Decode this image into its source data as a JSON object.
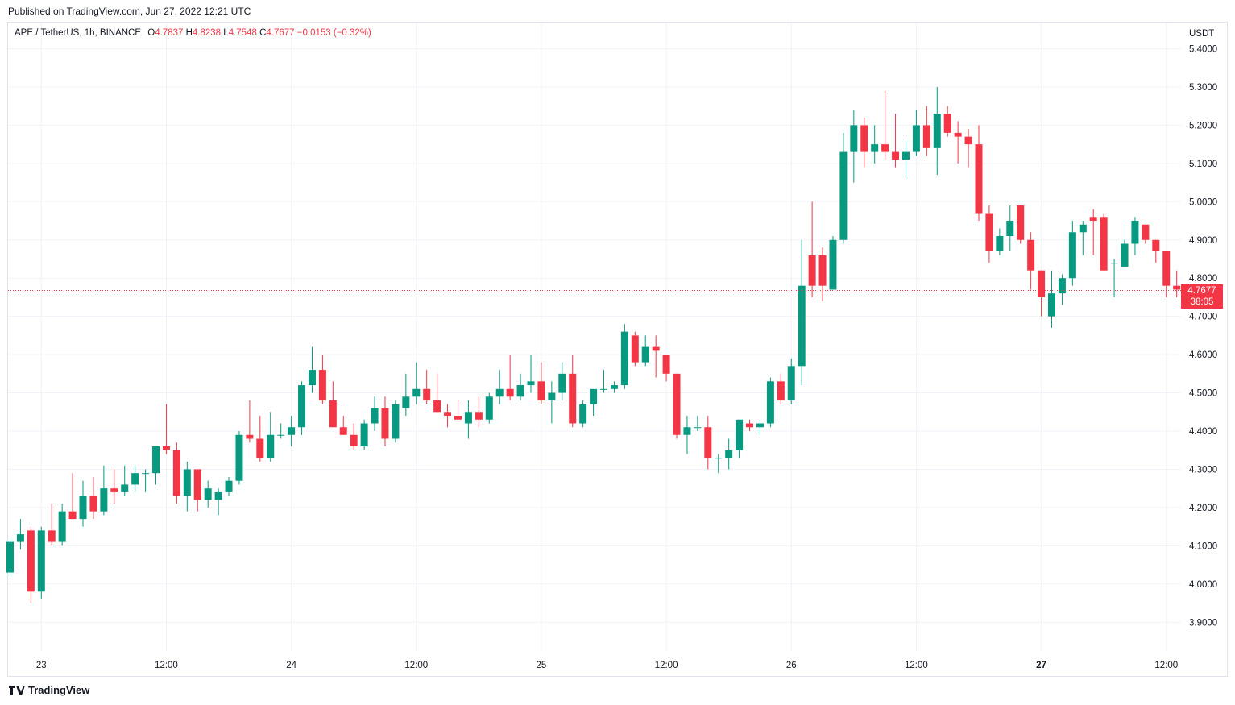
{
  "header": {
    "published": "Published on TradingView.com, Jun 27, 2022 12:21 UTC"
  },
  "legend": {
    "symbol": "APE / TetherUS, 1h, BINANCE",
    "o_label": "O",
    "o_value": "4.7837",
    "h_label": "H",
    "h_value": "4.8238",
    "l_label": "L",
    "l_value": "4.7548",
    "c_label": "C",
    "c_value": "4.7677",
    "change": "−0.0153 (−0.32%)"
  },
  "axis": {
    "currency": "USDT"
  },
  "last_price": {
    "value": "4.7677",
    "countdown": "38:05"
  },
  "footer": {
    "brand": "TradingView",
    "logo_icon": "tradingview-logo-icon"
  },
  "colors": {
    "up": "#089981",
    "down": "#f23645",
    "grid": "#f0f3fa",
    "text": "#131722"
  },
  "chart_data": {
    "type": "candlestick",
    "ylim": [
      3.85,
      5.45
    ],
    "y_ticks": [
      "5.4000",
      "5.3000",
      "5.2000",
      "5.1000",
      "5.0000",
      "4.9000",
      "4.8000",
      "4.7000",
      "4.6000",
      "4.5000",
      "4.4000",
      "4.3000",
      "4.2000",
      "4.1000",
      "4.0000",
      "3.9000"
    ],
    "x_ticks": [
      {
        "label": "23",
        "bar": 3,
        "bold": false
      },
      {
        "label": "12:00",
        "bar": 15,
        "bold": false
      },
      {
        "label": "24",
        "bar": 27,
        "bold": false
      },
      {
        "label": "12:00",
        "bar": 39,
        "bold": false
      },
      {
        "label": "25",
        "bar": 51,
        "bold": false
      },
      {
        "label": "12:00",
        "bar": 63,
        "bold": false
      },
      {
        "label": "26",
        "bar": 75,
        "bold": false
      },
      {
        "label": "12:00",
        "bar": 87,
        "bold": false
      },
      {
        "label": "27",
        "bar": 99,
        "bold": true
      },
      {
        "label": "12:00",
        "bar": 111,
        "bold": false
      }
    ],
    "candles": [
      [
        4.03,
        4.12,
        4.02,
        4.11
      ],
      [
        4.11,
        4.17,
        4.09,
        4.13
      ],
      [
        4.14,
        4.15,
        3.95,
        3.98
      ],
      [
        3.98,
        4.15,
        3.96,
        4.14
      ],
      [
        4.14,
        4.21,
        4.1,
        4.11
      ],
      [
        4.11,
        4.21,
        4.1,
        4.19
      ],
      [
        4.19,
        4.29,
        4.17,
        4.17
      ],
      [
        4.17,
        4.27,
        4.15,
        4.23
      ],
      [
        4.23,
        4.28,
        4.17,
        4.19
      ],
      [
        4.19,
        4.31,
        4.18,
        4.25
      ],
      [
        4.25,
        4.3,
        4.21,
        4.24
      ],
      [
        4.24,
        4.31,
        4.23,
        4.26
      ],
      [
        4.26,
        4.31,
        4.24,
        4.29
      ],
      [
        4.29,
        4.3,
        4.24,
        4.29
      ],
      [
        4.29,
        4.36,
        4.26,
        4.36
      ],
      [
        4.36,
        4.47,
        4.34,
        4.35
      ],
      [
        4.35,
        4.37,
        4.21,
        4.23
      ],
      [
        4.23,
        4.32,
        4.19,
        4.3
      ],
      [
        4.3,
        4.3,
        4.19,
        4.22
      ],
      [
        4.22,
        4.27,
        4.2,
        4.25
      ],
      [
        4.22,
        4.25,
        4.18,
        4.24
      ],
      [
        4.24,
        4.28,
        4.23,
        4.27
      ],
      [
        4.27,
        4.4,
        4.26,
        4.39
      ],
      [
        4.39,
        4.48,
        4.37,
        4.38
      ],
      [
        4.38,
        4.44,
        4.32,
        4.33
      ],
      [
        4.33,
        4.45,
        4.32,
        4.39
      ],
      [
        4.39,
        4.42,
        4.38,
        4.39
      ],
      [
        4.39,
        4.44,
        4.36,
        4.41
      ],
      [
        4.41,
        4.53,
        4.39,
        4.52
      ],
      [
        4.52,
        4.62,
        4.5,
        4.56
      ],
      [
        4.56,
        4.6,
        4.47,
        4.48
      ],
      [
        4.48,
        4.53,
        4.41,
        4.41
      ],
      [
        4.41,
        4.44,
        4.39,
        4.39
      ],
      [
        4.39,
        4.42,
        4.35,
        4.36
      ],
      [
        4.36,
        4.43,
        4.35,
        4.42
      ],
      [
        4.42,
        4.49,
        4.4,
        4.46
      ],
      [
        4.46,
        4.49,
        4.36,
        4.38
      ],
      [
        4.38,
        4.48,
        4.37,
        4.47
      ],
      [
        4.46,
        4.55,
        4.44,
        4.49
      ],
      [
        4.49,
        4.58,
        4.47,
        4.51
      ],
      [
        4.51,
        4.56,
        4.47,
        4.48
      ],
      [
        4.48,
        4.55,
        4.45,
        4.45
      ],
      [
        4.45,
        4.47,
        4.41,
        4.44
      ],
      [
        4.44,
        4.48,
        4.43,
        4.43
      ],
      [
        4.42,
        4.48,
        4.38,
        4.45
      ],
      [
        4.45,
        4.49,
        4.41,
        4.43
      ],
      [
        4.43,
        4.5,
        4.42,
        4.49
      ],
      [
        4.49,
        4.56,
        4.47,
        4.51
      ],
      [
        4.51,
        4.6,
        4.48,
        4.49
      ],
      [
        4.49,
        4.55,
        4.48,
        4.52
      ],
      [
        4.52,
        4.6,
        4.5,
        4.53
      ],
      [
        4.53,
        4.58,
        4.47,
        4.48
      ],
      [
        4.48,
        4.53,
        4.42,
        4.5
      ],
      [
        4.5,
        4.58,
        4.48,
        4.55
      ],
      [
        4.55,
        4.6,
        4.41,
        4.42
      ],
      [
        4.42,
        4.48,
        4.41,
        4.47
      ],
      [
        4.47,
        4.5,
        4.44,
        4.51
      ],
      [
        4.51,
        4.56,
        4.5,
        4.51
      ],
      [
        4.51,
        4.53,
        4.5,
        4.52
      ],
      [
        4.52,
        4.68,
        4.51,
        4.66
      ],
      [
        4.65,
        4.66,
        4.57,
        4.58
      ],
      [
        4.58,
        4.65,
        4.57,
        4.62
      ],
      [
        4.62,
        4.65,
        4.54,
        4.61
      ],
      [
        4.6,
        4.6,
        4.53,
        4.55
      ],
      [
        4.55,
        4.55,
        4.38,
        4.39
      ],
      [
        4.39,
        4.44,
        4.34,
        4.41
      ],
      [
        4.41,
        4.44,
        4.4,
        4.41
      ],
      [
        4.41,
        4.44,
        4.3,
        4.33
      ],
      [
        4.33,
        4.34,
        4.29,
        4.33
      ],
      [
        4.33,
        4.38,
        4.3,
        4.35
      ],
      [
        4.35,
        4.43,
        4.33,
        4.43
      ],
      [
        4.42,
        4.43,
        4.4,
        4.41
      ],
      [
        4.41,
        4.43,
        4.39,
        4.42
      ],
      [
        4.42,
        4.54,
        4.41,
        4.53
      ],
      [
        4.53,
        4.55,
        4.47,
        4.48
      ],
      [
        4.48,
        4.59,
        4.47,
        4.57
      ],
      [
        4.57,
        4.9,
        4.52,
        4.78
      ],
      [
        4.86,
        5.0,
        4.75,
        4.78
      ],
      [
        4.86,
        4.88,
        4.74,
        4.78
      ],
      [
        4.77,
        4.91,
        4.77,
        4.9
      ],
      [
        4.9,
        5.18,
        4.89,
        5.13
      ],
      [
        5.13,
        5.24,
        5.05,
        5.2
      ],
      [
        5.2,
        5.22,
        5.09,
        5.13
      ],
      [
        5.13,
        5.2,
        5.1,
        5.15
      ],
      [
        5.15,
        5.29,
        5.11,
        5.13
      ],
      [
        5.13,
        5.23,
        5.09,
        5.11
      ],
      [
        5.11,
        5.16,
        5.06,
        5.13
      ],
      [
        5.13,
        5.24,
        5.12,
        5.2
      ],
      [
        5.2,
        5.25,
        5.12,
        5.14
      ],
      [
        5.14,
        5.3,
        5.07,
        5.23
      ],
      [
        5.23,
        5.25,
        5.17,
        5.18
      ],
      [
        5.18,
        5.21,
        5.1,
        5.17
      ],
      [
        5.17,
        5.19,
        5.09,
        5.15
      ],
      [
        5.15,
        5.2,
        4.95,
        4.97
      ],
      [
        4.97,
        4.99,
        4.84,
        4.87
      ],
      [
        4.87,
        4.93,
        4.86,
        4.91
      ],
      [
        4.91,
        4.99,
        4.87,
        4.95
      ],
      [
        4.99,
        4.99,
        4.89,
        4.9
      ],
      [
        4.9,
        4.92,
        4.77,
        4.82
      ],
      [
        4.82,
        4.82,
        4.7,
        4.75
      ],
      [
        4.7,
        4.82,
        4.67,
        4.76
      ],
      [
        4.76,
        4.81,
        4.73,
        4.8
      ],
      [
        4.8,
        4.95,
        4.78,
        4.92
      ],
      [
        4.92,
        4.95,
        4.86,
        4.94
      ],
      [
        4.96,
        4.98,
        4.86,
        4.95
      ],
      [
        4.96,
        4.97,
        4.82,
        4.82
      ],
      [
        4.84,
        4.85,
        4.75,
        4.84
      ],
      [
        4.83,
        4.9,
        4.83,
        4.89
      ],
      [
        4.89,
        4.96,
        4.86,
        4.95
      ],
      [
        4.94,
        4.94,
        4.89,
        4.9
      ],
      [
        4.9,
        4.9,
        4.84,
        4.87
      ],
      [
        4.87,
        4.87,
        4.75,
        4.78
      ],
      [
        4.78,
        4.82,
        4.75,
        4.77
      ]
    ]
  }
}
